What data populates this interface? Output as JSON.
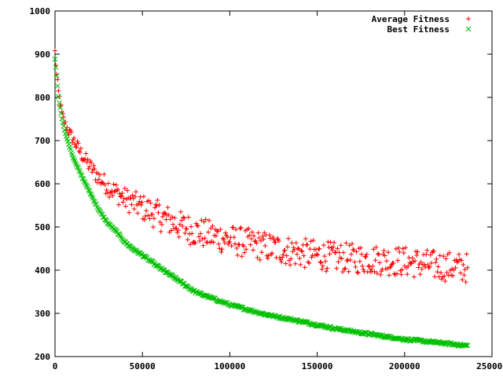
{
  "chart_data": {
    "type": "scatter",
    "title": "",
    "xlabel": "",
    "ylabel": "",
    "xlim": [
      0,
      250000
    ],
    "ylim": [
      200,
      1000
    ],
    "xticks": [
      0,
      50000,
      100000,
      150000,
      200000,
      250000
    ],
    "yticks": [
      200,
      300,
      400,
      500,
      600,
      700,
      800,
      900,
      1000
    ],
    "xtick_labels": [
      "0",
      "50000",
      "100000",
      "150000",
      "200000",
      "250000"
    ],
    "ytick_labels": [
      "200",
      "300",
      "400",
      "500",
      "600",
      "700",
      "800",
      "900",
      "1000"
    ],
    "grid": false,
    "legend_position": "top-right",
    "x_range_of_data": [
      0,
      236000
    ],
    "series": [
      {
        "name": "Average Fitness",
        "marker": "plus",
        "color": "#ff0000",
        "trend_points": [
          [
            0,
            905
          ],
          [
            1000,
            850
          ],
          [
            2000,
            810
          ],
          [
            4000,
            760
          ],
          [
            6000,
            735
          ],
          [
            8000,
            720
          ],
          [
            10000,
            705
          ],
          [
            15000,
            670
          ],
          [
            20000,
            640
          ],
          [
            25000,
            615
          ],
          [
            30000,
            595
          ],
          [
            35000,
            580
          ],
          [
            40000,
            565
          ],
          [
            45000,
            555
          ],
          [
            50000,
            545
          ],
          [
            55000,
            535
          ],
          [
            60000,
            525
          ],
          [
            70000,
            505
          ],
          [
            80000,
            490
          ],
          [
            90000,
            480
          ],
          [
            100000,
            470
          ],
          [
            120000,
            455
          ],
          [
            140000,
            440
          ],
          [
            160000,
            430
          ],
          [
            180000,
            425
          ],
          [
            200000,
            420
          ],
          [
            220000,
            410
          ],
          [
            236000,
            405
          ]
        ],
        "spread": 25
      },
      {
        "name": "Best Fitness",
        "marker": "cross",
        "color": "#00c000",
        "trend_points": [
          [
            0,
            888
          ],
          [
            1000,
            850
          ],
          [
            2000,
            800
          ],
          [
            4000,
            750
          ],
          [
            6000,
            715
          ],
          [
            8000,
            690
          ],
          [
            10000,
            665
          ],
          [
            15000,
            620
          ],
          [
            20000,
            580
          ],
          [
            25000,
            540
          ],
          [
            30000,
            510
          ],
          [
            35000,
            490
          ],
          [
            40000,
            465
          ],
          [
            45000,
            448
          ],
          [
            50000,
            435
          ],
          [
            55000,
            420
          ],
          [
            60000,
            405
          ],
          [
            70000,
            378
          ],
          [
            80000,
            350
          ],
          [
            90000,
            335
          ],
          [
            100000,
            320
          ],
          [
            120000,
            298
          ],
          [
            140000,
            282
          ],
          [
            160000,
            265
          ],
          [
            180000,
            252
          ],
          [
            200000,
            240
          ],
          [
            220000,
            232
          ],
          [
            236000,
            225
          ]
        ],
        "spread": 2
      }
    ]
  }
}
